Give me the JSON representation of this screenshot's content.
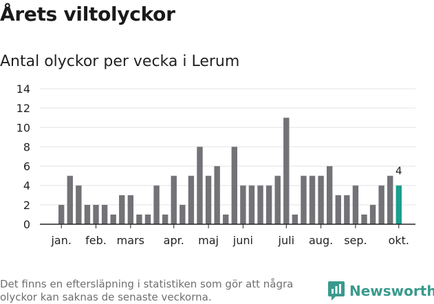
{
  "title": "Årets viltolyckor",
  "subtitle": "Antal olyckor per vecka i Lerum",
  "footnote": "Det finns en eftersläpning i statistiken som gör att några olyckor kan saknas de senaste veckorna.",
  "brand": "Newsworthy",
  "colors": {
    "bar": "#737277",
    "highlight": "#1a9f8c",
    "grid": "#e3e3e3",
    "axis": "#222222",
    "brand": "#3a9a8d"
  },
  "chart_data": {
    "type": "bar",
    "title": "Antal olyckor per vecka i Lerum",
    "xlabel": "",
    "ylabel": "",
    "ylim": [
      0,
      14
    ],
    "yticks": [
      0,
      2,
      4,
      6,
      8,
      10,
      12,
      14
    ],
    "weeks": [
      1,
      2,
      3,
      4,
      5,
      6,
      7,
      8,
      9,
      10,
      11,
      12,
      13,
      14,
      15,
      16,
      17,
      18,
      19,
      20,
      21,
      22,
      23,
      24,
      25,
      26,
      27,
      28,
      29,
      30,
      31,
      32,
      33,
      34,
      35,
      36,
      37,
      38,
      39,
      40
    ],
    "values": [
      2,
      5,
      4,
      2,
      2,
      2,
      1,
      3,
      3,
      1,
      1,
      4,
      1,
      5,
      2,
      5,
      8,
      5,
      6,
      1,
      8,
      4,
      4,
      4,
      4,
      5,
      11,
      1,
      5,
      5,
      5,
      6,
      3,
      3,
      4,
      1,
      2,
      4,
      5,
      4
    ],
    "highlight_index": 39,
    "highlight_label": "4",
    "month_labels": [
      {
        "label": "jan.",
        "bar_index": 0
      },
      {
        "label": "feb.",
        "bar_index": 4
      },
      {
        "label": "mars",
        "bar_index": 8
      },
      {
        "label": "apr.",
        "bar_index": 13
      },
      {
        "label": "maj",
        "bar_index": 17
      },
      {
        "label": "juni",
        "bar_index": 21
      },
      {
        "label": "juli",
        "bar_index": 26
      },
      {
        "label": "aug.",
        "bar_index": 30
      },
      {
        "label": "sep.",
        "bar_index": 34
      },
      {
        "label": "okt.",
        "bar_index": 39
      }
    ]
  }
}
